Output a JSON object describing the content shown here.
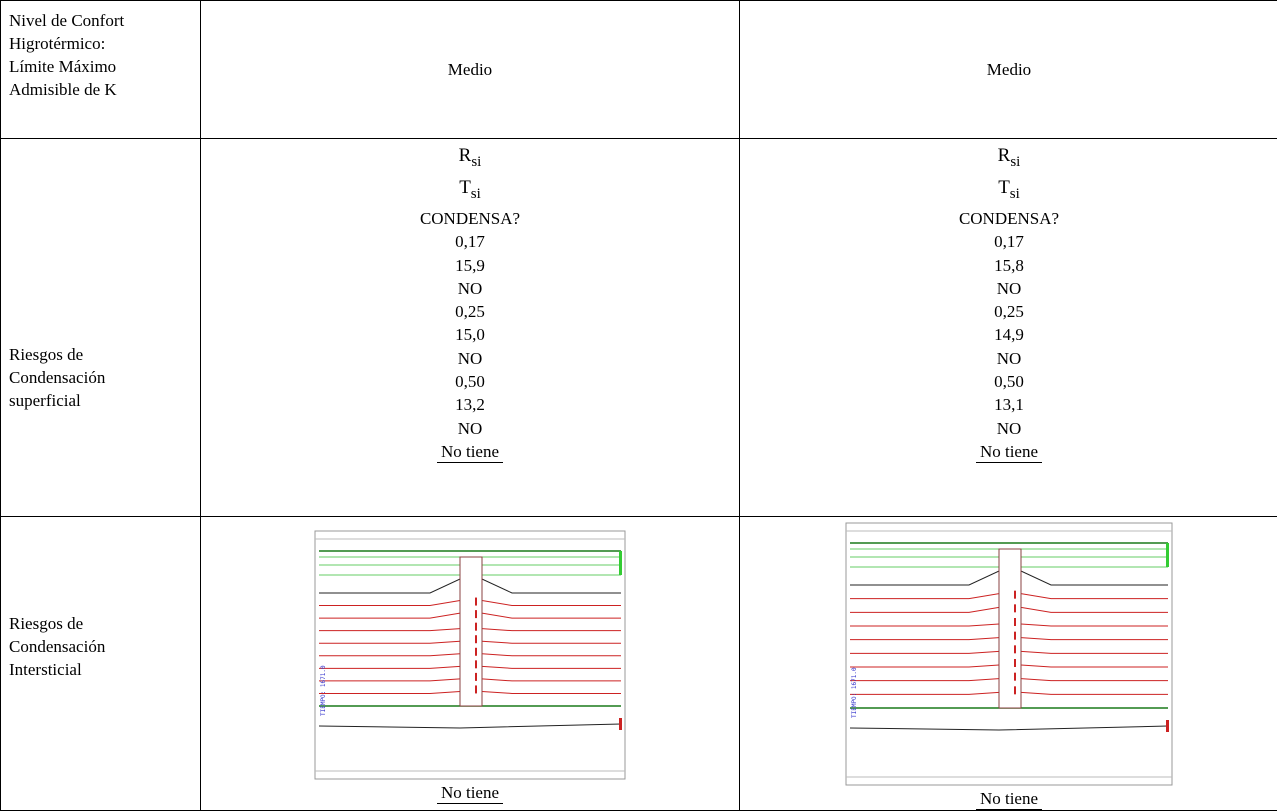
{
  "rows": {
    "confort": {
      "label_lines": [
        "Nivel de Confort",
        "Higrotérmico:",
        "Límite Máximo",
        "Admisible de K"
      ],
      "col1": "Medio",
      "col2": "Medio"
    },
    "superficial": {
      "label_lines": [
        "Riesgos de",
        "Condensación",
        "superficial"
      ],
      "header_r": "R",
      "header_t": "T",
      "sub": "si",
      "header_c": "CONDENSA?",
      "col1": [
        "0,17",
        "15,9",
        "NO",
        "0,25",
        "15,0",
        "NO",
        "0,50",
        "13,2",
        "NO",
        "No tiene"
      ],
      "col2": [
        "0,17",
        "15,8",
        "NO",
        "0,25",
        "14,9",
        "NO",
        "0,50",
        "13,1",
        "NO",
        "No tiene"
      ]
    },
    "intersticial": {
      "label_lines": [
        "Riesgos de",
        "Condensación",
        "Intersticial"
      ],
      "col1_caption": "No tiene",
      "col2_caption": "No tiene",
      "side_label": "TIEMPO: 1671.0"
    }
  },
  "colors": {
    "green_line": "#1a7a1a",
    "light_green": "#66cc66",
    "red_line": "#cc2222",
    "wall": "#8a4040",
    "blue_text": "#3333cc"
  }
}
